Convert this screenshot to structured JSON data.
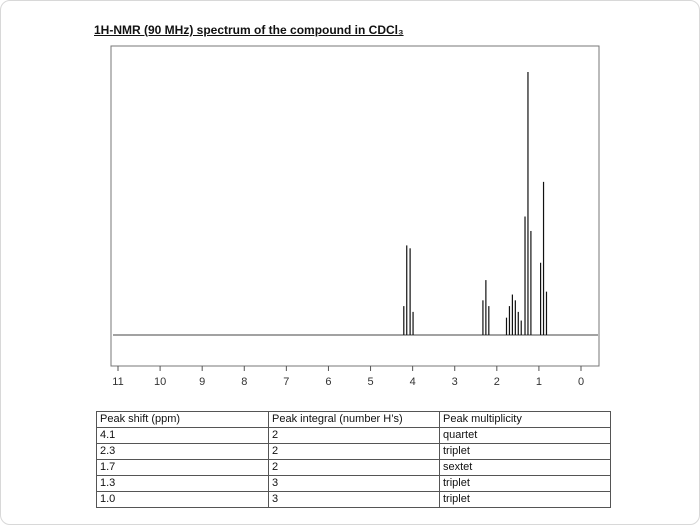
{
  "chart_data": {
    "type": "stick",
    "title": "1H-NMR (90 MHz) spectrum of the compound in CDCl₃",
    "x": [
      4.21,
      4.14,
      4.06,
      3.99,
      2.33,
      2.26,
      2.19,
      1.77,
      1.7,
      1.63,
      1.56,
      1.49,
      1.42,
      1.33,
      1.26,
      1.19,
      0.96,
      0.89,
      0.82
    ],
    "values": [
      10,
      31,
      30,
      8,
      12,
      19,
      10,
      6,
      10,
      14,
      12,
      8,
      5,
      41,
      91,
      36,
      25,
      53,
      15
    ],
    "xlim": [
      11,
      0
    ],
    "xticks": [
      11,
      10,
      9,
      8,
      7,
      6,
      5,
      4,
      3,
      2,
      1,
      0
    ],
    "ylim": [
      0,
      100
    ],
    "color": "#111111"
  },
  "table": {
    "columns": [
      "Peak shift (ppm)",
      "Peak integral (number H’s)",
      "Peak multiplicity"
    ],
    "rows": [
      [
        "4.1",
        "2",
        "quartet"
      ],
      [
        "2.3",
        "2",
        "triplet"
      ],
      [
        "1.7",
        "2",
        "sextet"
      ],
      [
        "1.3",
        "3",
        "triplet"
      ],
      [
        "1.0",
        "3",
        "triplet"
      ]
    ]
  }
}
